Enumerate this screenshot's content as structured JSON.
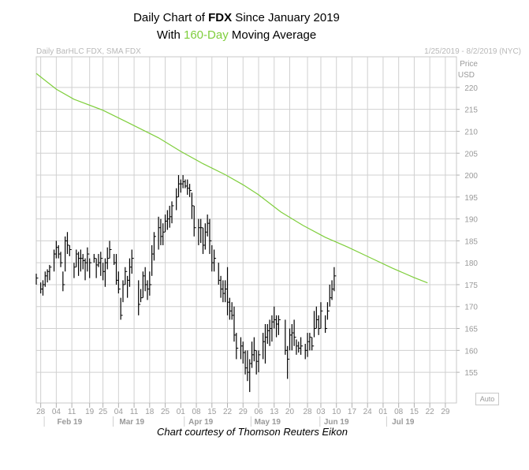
{
  "title": {
    "line1_prefix": "Daily Chart of ",
    "line1_symbol": "FDX",
    "line1_suffix": " Since January 2019",
    "line2_prefix": "With ",
    "line2_highlight": "160-Day",
    "line2_suffix": " Moving Average"
  },
  "header": {
    "left": "Daily BarHLC FDX, SMA FDX",
    "right": "1/25/2019 - 8/2/2019 (NYC)"
  },
  "axis": {
    "price_label": "Price",
    "currency_label": "USD",
    "auto_label": "Auto"
  },
  "credit": "Chart courtesy of Thomson Reuters Eikon",
  "colors": {
    "sma": "#7fce3c",
    "bars": "#000000",
    "grid": "#d0d0d0",
    "axis_text": "#9a9a9a"
  },
  "chart_data": {
    "type": "ohlc",
    "ylim": [
      148,
      227
    ],
    "ytick_values": [
      155,
      160,
      165,
      170,
      175,
      180,
      185,
      190,
      195,
      200,
      205,
      210,
      215,
      220
    ],
    "x_range_days": [
      -5,
      184
    ],
    "day_tick_labels": [
      {
        "label": "28",
        "day": -3
      },
      {
        "label": "04",
        "day": 4
      },
      {
        "label": "11",
        "day": 11
      },
      {
        "label": "19",
        "day": 19
      },
      {
        "label": "25",
        "day": 25
      },
      {
        "label": "04",
        "day": 32
      },
      {
        "label": "11",
        "day": 39
      },
      {
        "label": "18",
        "day": 46
      },
      {
        "label": "25",
        "day": 53
      },
      {
        "label": "01",
        "day": 60
      },
      {
        "label": "08",
        "day": 67
      },
      {
        "label": "15",
        "day": 74
      },
      {
        "label": "22",
        "day": 81
      },
      {
        "label": "29",
        "day": 88
      },
      {
        "label": "06",
        "day": 95
      },
      {
        "label": "13",
        "day": 102
      },
      {
        "label": "20",
        "day": 109
      },
      {
        "label": "28",
        "day": 117
      },
      {
        "label": "03",
        "day": 123
      },
      {
        "label": "10",
        "day": 130
      },
      {
        "label": "17",
        "day": 137
      },
      {
        "label": "24",
        "day": 144
      },
      {
        "label": "01",
        "day": 151
      },
      {
        "label": "08",
        "day": 158
      },
      {
        "label": "15",
        "day": 165
      },
      {
        "label": "22",
        "day": 172
      },
      {
        "label": "29",
        "day": 179
      }
    ],
    "month_labels": [
      {
        "label": "Feb 19",
        "day": 10
      },
      {
        "label": "Mar 19",
        "day": 38
      },
      {
        "label": "Apr 19",
        "day": 69
      },
      {
        "label": "May 19",
        "day": 99
      },
      {
        "label": "Jun 19",
        "day": 130
      },
      {
        "label": "Jul 19",
        "day": 160
      }
    ],
    "sma": [
      [
        -5,
        223.2
      ],
      [
        4,
        219.6
      ],
      [
        12,
        217.3
      ],
      [
        25,
        214.8
      ],
      [
        35,
        212.3
      ],
      [
        50,
        208.5
      ],
      [
        60,
        205.4
      ],
      [
        70,
        202.6
      ],
      [
        80,
        200.1
      ],
      [
        88,
        197.8
      ],
      [
        95,
        195.5
      ],
      [
        105,
        191.6
      ],
      [
        115,
        188.5
      ],
      [
        125,
        185.8
      ],
      [
        135,
        183.6
      ],
      [
        145,
        181.2
      ],
      [
        155,
        178.8
      ],
      [
        165,
        176.6
      ],
      [
        171,
        175.4
      ]
    ],
    "bars": [
      [
        -5,
        175,
        177.5,
        176.5
      ],
      [
        -3,
        173,
        175.5,
        174
      ],
      [
        -2,
        172.5,
        176,
        175
      ],
      [
        -1,
        174.5,
        178,
        177
      ],
      [
        0,
        175.5,
        178.5,
        178
      ],
      [
        1,
        176,
        179.5,
        179
      ],
      [
        3,
        178,
        183,
        182
      ],
      [
        4,
        181,
        185,
        183.5
      ],
      [
        5,
        181,
        184,
        182
      ],
      [
        6,
        179,
        182.5,
        180
      ],
      [
        7,
        173.5,
        178,
        175
      ],
      [
        8,
        178,
        186,
        185
      ],
      [
        9,
        182,
        187,
        184
      ],
      [
        10,
        181.5,
        184,
        183
      ],
      [
        12,
        176.5,
        180,
        179
      ],
      [
        13,
        179,
        183,
        182
      ],
      [
        14,
        177,
        182.5,
        181
      ],
      [
        15,
        178,
        183,
        181
      ],
      [
        16,
        178.5,
        182,
        180.5
      ],
      [
        17,
        176,
        181,
        180
      ],
      [
        18,
        178,
        183.5,
        182
      ],
      [
        19,
        176.5,
        181,
        180
      ],
      [
        21,
        180,
        182,
        181
      ],
      [
        22,
        176.5,
        181,
        179.5
      ],
      [
        23,
        179,
        182,
        180
      ],
      [
        24,
        177,
        182.5,
        181
      ],
      [
        25,
        176,
        180,
        178
      ],
      [
        26,
        174.5,
        181,
        180
      ],
      [
        27,
        178.5,
        183.5,
        181
      ],
      [
        28,
        181,
        185,
        183
      ],
      [
        30,
        179.5,
        182,
        180
      ],
      [
        31,
        175,
        182,
        176
      ],
      [
        32,
        173,
        178,
        174
      ],
      [
        33,
        167,
        172,
        168
      ],
      [
        34,
        171,
        176,
        175
      ],
      [
        35,
        175,
        179,
        178
      ],
      [
        36,
        172,
        177,
        176
      ],
      [
        37,
        174.5,
        181,
        179
      ],
      [
        38,
        177.5,
        183,
        181
      ],
      [
        41,
        168,
        176,
        170.5
      ],
      [
        42,
        171,
        174,
        172
      ],
      [
        43,
        172,
        178,
        177
      ],
      [
        44,
        173.5,
        179,
        175
      ],
      [
        45,
        171.5,
        176,
        174
      ],
      [
        46,
        172.5,
        178,
        175
      ],
      [
        47,
        177,
        184,
        182
      ],
      [
        48,
        180.5,
        187,
        186
      ],
      [
        50,
        183,
        190.5,
        188
      ],
      [
        51,
        184,
        190,
        186
      ],
      [
        52,
        184,
        189,
        187
      ],
      [
        53,
        187,
        191,
        189.5
      ],
      [
        54,
        187.5,
        192,
        190
      ],
      [
        55,
        188,
        193,
        190.5
      ],
      [
        56,
        189,
        194,
        193
      ],
      [
        58,
        192,
        197,
        195
      ],
      [
        59,
        195,
        200,
        198
      ],
      [
        60,
        196,
        199,
        198
      ],
      [
        61,
        197,
        200,
        198.5
      ],
      [
        62,
        197,
        199,
        197.5
      ],
      [
        63,
        195.5,
        199,
        197
      ],
      [
        64,
        195,
        198,
        196.5
      ],
      [
        65,
        190,
        196,
        193
      ],
      [
        66,
        186,
        193,
        188
      ],
      [
        68,
        184,
        190,
        188
      ],
      [
        69,
        184.5,
        190,
        188
      ],
      [
        70,
        182,
        188,
        184
      ],
      [
        71,
        183,
        189,
        187
      ],
      [
        72,
        186,
        191,
        189
      ],
      [
        73,
        182,
        190,
        185
      ],
      [
        74,
        178,
        184,
        180
      ],
      [
        75,
        178,
        183,
        181
      ],
      [
        77,
        175,
        180,
        176
      ],
      [
        78,
        172,
        177,
        174
      ],
      [
        79,
        171,
        176,
        173
      ],
      [
        80,
        171,
        176,
        174
      ],
      [
        81,
        168,
        179,
        171
      ],
      [
        82,
        167,
        172,
        169
      ],
      [
        83,
        167,
        171,
        168
      ],
      [
        84,
        162,
        170,
        163.5
      ],
      [
        85,
        158,
        164,
        160.5
      ],
      [
        87,
        158,
        163,
        161
      ],
      [
        88,
        157,
        162,
        159.5
      ],
      [
        89,
        154.5,
        160,
        156
      ],
      [
        90,
        153,
        160,
        155
      ],
      [
        91,
        150.5,
        158,
        157
      ],
      [
        92,
        156,
        162,
        159
      ],
      [
        93,
        157.5,
        163,
        160
      ],
      [
        94,
        154.5,
        160,
        157.5
      ],
      [
        95,
        155,
        160,
        159
      ],
      [
        97,
        158,
        164,
        162
      ],
      [
        98,
        157,
        166,
        163
      ],
      [
        99,
        161.5,
        166,
        164.5
      ],
      [
        100,
        161,
        167,
        165
      ],
      [
        101,
        162,
        168,
        166.5
      ],
      [
        102,
        165,
        170,
        167
      ],
      [
        103,
        163,
        168,
        166
      ],
      [
        104,
        163.5,
        168,
        167
      ],
      [
        107,
        159,
        167,
        160
      ],
      [
        108,
        153.5,
        161,
        158
      ],
      [
        109,
        160,
        165,
        163.5
      ],
      [
        110,
        160,
        166,
        164
      ],
      [
        111,
        161,
        167,
        163
      ],
      [
        112,
        159,
        162.5,
        161
      ],
      [
        113,
        159.5,
        162,
        160.5
      ],
      [
        114,
        159,
        163,
        161
      ],
      [
        116,
        158,
        161.5,
        160
      ],
      [
        117,
        158.5,
        164,
        162
      ],
      [
        118,
        160,
        164,
        163
      ],
      [
        119,
        160,
        163,
        161
      ],
      [
        120,
        163,
        169,
        165
      ],
      [
        121,
        165,
        170,
        167
      ],
      [
        122,
        163.5,
        168,
        165
      ],
      [
        123,
        165,
        171,
        169
      ],
      [
        125,
        164,
        168,
        165
      ],
      [
        126,
        167,
        171,
        169
      ],
      [
        127,
        170,
        175,
        172
      ],
      [
        128,
        171.5,
        176,
        174
      ],
      [
        129,
        173.5,
        179,
        177
      ]
    ]
  }
}
